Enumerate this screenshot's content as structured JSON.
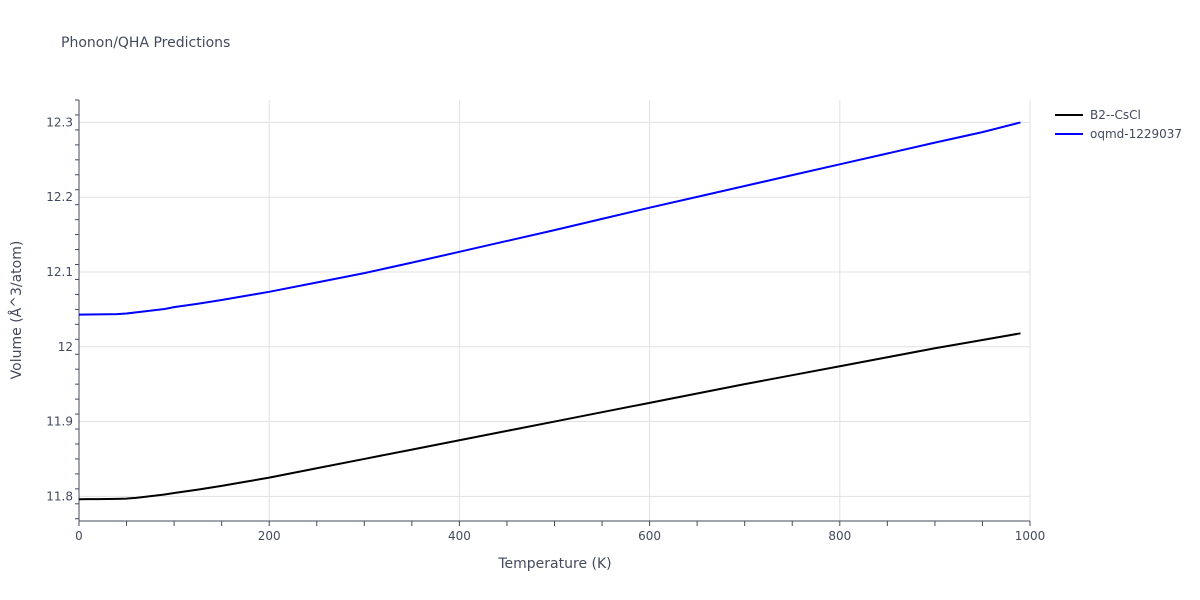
{
  "chart_data": {
    "type": "line",
    "title": "Phonon/QHA Predictions",
    "xlabel": "Temperature (K)",
    "ylabel": "Volume (Å^3/atom)",
    "xlim": [
      0,
      1000
    ],
    "ylim": [
      11.767,
      12.33
    ],
    "x_ticks": [
      0,
      200,
      400,
      600,
      800,
      1000
    ],
    "x_tick_labels": [
      "0",
      "200",
      "400",
      "600",
      "800",
      "1000"
    ],
    "y_ticks": [
      11.8,
      11.9,
      12.0,
      12.1,
      12.2,
      12.3
    ],
    "y_tick_labels": [
      "11.8",
      "11.9",
      "12",
      "12.1",
      "12.2",
      "12.3"
    ],
    "grid": true,
    "legend_position": "top-right",
    "series": [
      {
        "name": "B2--CsCl",
        "color": "#000000",
        "x": [
          0,
          10,
          20,
          30,
          40,
          50,
          60,
          70,
          80,
          90,
          100,
          125,
          150,
          175,
          200,
          250,
          300,
          350,
          400,
          450,
          500,
          550,
          600,
          650,
          700,
          750,
          800,
          850,
          900,
          950,
          990
        ],
        "y": [
          11.796,
          11.7962,
          11.7963,
          11.7964,
          11.7966,
          11.797,
          11.798,
          11.7995,
          11.801,
          11.8025,
          11.8045,
          11.809,
          11.814,
          11.8195,
          11.825,
          11.8375,
          11.85,
          11.8625,
          11.875,
          11.8875,
          11.9,
          11.9125,
          11.925,
          11.9375,
          11.95,
          11.962,
          11.974,
          11.986,
          11.998,
          12.009,
          12.018
        ]
      },
      {
        "name": "oqmd-1229037",
        "color": "#0000ff",
        "x": [
          0,
          10,
          20,
          30,
          40,
          50,
          60,
          70,
          80,
          90,
          100,
          125,
          150,
          175,
          200,
          250,
          300,
          350,
          400,
          450,
          500,
          550,
          600,
          650,
          700,
          750,
          800,
          850,
          900,
          950,
          990
        ],
        "y": [
          12.043,
          12.0432,
          12.0433,
          12.0434,
          12.0436,
          12.0445,
          12.046,
          12.0475,
          12.049,
          12.0505,
          12.053,
          12.0575,
          12.0625,
          12.068,
          12.0735,
          12.086,
          12.0985,
          12.1125,
          12.127,
          12.1415,
          12.156,
          12.171,
          12.186,
          12.2005,
          12.215,
          12.2295,
          12.244,
          12.2585,
          12.273,
          12.287,
          12.3
        ]
      }
    ]
  }
}
